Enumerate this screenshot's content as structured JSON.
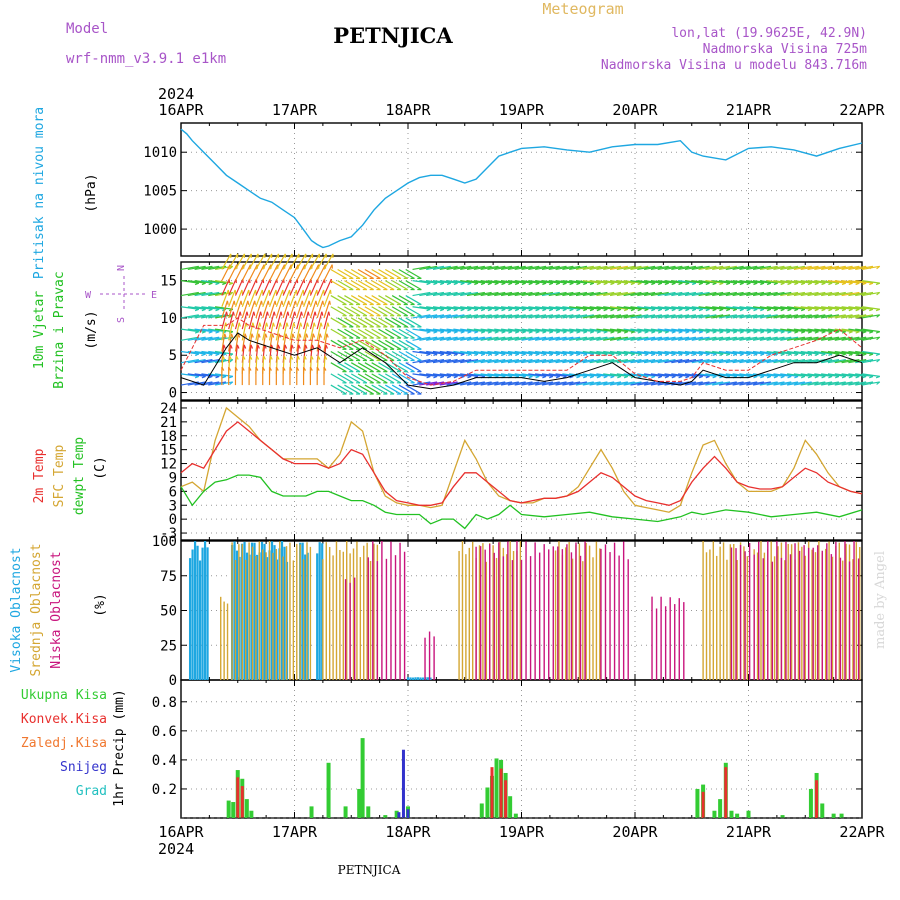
{
  "header": {
    "model_label": "Model",
    "model_name": "wrf-nmm_v3.9.1  e1km",
    "station": "PETNJICA",
    "product": "Meteogram",
    "lonlat": "lon,lat (19.9625E, 42.9N)",
    "altitude": "Nadmorska Visina 725m",
    "model_altitude": "Nadmorska Visina u modelu 843.716m"
  },
  "time_axis": {
    "year_top": "2024",
    "year_bottom": "2024",
    "labels": [
      "16APR",
      "17APR",
      "18APR",
      "19APR",
      "20APR",
      "21APR",
      "22APR"
    ],
    "footer_station": "PETNJICA"
  },
  "credit": "made by Angel",
  "colors": {
    "pressure": "#1ea7e1",
    "wind_speed": "#000000",
    "wind_gust": "#e8302e",
    "t2m": "#e8302e",
    "sfc": "#d4a632",
    "dewpt": "#22c122",
    "cloud_high": "#1ea7e1",
    "cloud_mid": "#d4a632",
    "cloud_low": "#c8147d",
    "precip_total": "#33cc33",
    "precip_conv": "#e8302e",
    "precip_frz": "#f07830",
    "snow": "#3333cc",
    "hail": "#22c0c0"
  },
  "panels": {
    "pressure": {
      "ylabel_name": "Pritisak na nivou mora",
      "ylabel_unit": "(hPa)",
      "ticks": [
        "1000",
        "1005",
        "1010"
      ]
    },
    "wind": {
      "ylabel_name1": "10m Vjetar",
      "ylabel_name2": "Brzina i Pravac",
      "ylabel_unit": "(m/s)",
      "compass_n": "N",
      "compass_e": "E",
      "compass_w": "W",
      "compass_s": "S",
      "ticks": [
        "0",
        "5",
        "10",
        "15"
      ]
    },
    "temp": {
      "ylabel_t2m": "2m Temp",
      "ylabel_sfc": "SFC Temp",
      "ylabel_dew": "dewpt Temp",
      "ylabel_unit": "(C)",
      "ticks": [
        "-3",
        "0",
        "3",
        "6",
        "9",
        "12",
        "15",
        "18",
        "21",
        "24"
      ]
    },
    "cloud": {
      "ylabel_high": "Visoka Oblacnost",
      "ylabel_mid": "Srednja Oblacnost",
      "ylabel_low": "Niska Oblacnost",
      "ylabel_unit": "(%)",
      "ticks": [
        "0",
        "25",
        "50",
        "75",
        "100"
      ]
    },
    "precip": {
      "ylabel": "1hr Precip (mm)",
      "legend": [
        "Ukupna Kisa",
        "Konvek.Kisa",
        "Zaledj.Kisa",
        "Snijeg",
        "Grad"
      ],
      "ticks": [
        "0.2",
        "0.4",
        "0.6",
        "0.8"
      ]
    }
  },
  "chart_data": [
    {
      "type": "line",
      "title": "",
      "ylabel": "Pritisak na nivou mora (hPa)",
      "ylim": [
        996.5,
        1013.8
      ],
      "x_unit": "days since 16APR 00UTC",
      "series": [
        {
          "name": "Pritisak na nivou mora",
          "x": [
            0,
            0.05,
            0.1,
            0.2,
            0.3,
            0.4,
            0.5,
            0.6,
            0.7,
            0.8,
            0.9,
            1.0,
            1.05,
            1.1,
            1.15,
            1.2,
            1.25,
            1.3,
            1.4,
            1.5,
            1.6,
            1.7,
            1.8,
            1.9,
            2.0,
            2.1,
            2.2,
            2.3,
            2.4,
            2.5,
            2.6,
            2.7,
            2.8,
            2.9,
            3.0,
            3.2,
            3.4,
            3.6,
            3.8,
            4.0,
            4.2,
            4.4,
            4.5,
            4.6,
            4.8,
            5.0,
            5.2,
            5.4,
            5.6,
            5.8,
            6.0
          ],
          "y": [
            1013,
            1012.4,
            1011.5,
            1010,
            1008.5,
            1007,
            1006,
            1005,
            1004,
            1003.5,
            1002.5,
            1001.5,
            1000.5,
            999.5,
            998.5,
            998,
            997.6,
            997.8,
            998.5,
            999,
            1000.5,
            1002.5,
            1004,
            1005,
            1006,
            1006.7,
            1007,
            1007,
            1006.5,
            1006,
            1006.5,
            1008,
            1009.5,
            1010,
            1010.5,
            1010.7,
            1010.3,
            1010,
            1010.7,
            1011,
            1011,
            1011.5,
            1010,
            1009.5,
            1009,
            1010.5,
            1010.7,
            1010.3,
            1009.5,
            1010.5,
            1011.2
          ]
        }
      ]
    },
    {
      "type": "line",
      "title": "",
      "ylabel": "10m Vjetar Brzina i Pravac (m/s)",
      "ylim": [
        -1,
        17.5
      ],
      "x_unit": "days since 16APR 00UTC",
      "series": [
        {
          "name": "wind speed",
          "x": [
            0,
            0.2,
            0.4,
            0.5,
            0.6,
            0.8,
            1.0,
            1.2,
            1.4,
            1.6,
            1.8,
            2.0,
            2.2,
            2.4,
            2.6,
            2.8,
            3.0,
            3.2,
            3.4,
            3.6,
            3.8,
            4.0,
            4.2,
            4.4,
            4.5,
            4.6,
            4.8,
            5.0,
            5.2,
            5.4,
            5.6,
            5.8,
            6.0
          ],
          "y": [
            2,
            1,
            6,
            8,
            7,
            6,
            5,
            6,
            4,
            6,
            4,
            1,
            0.5,
            1,
            2,
            2,
            2,
            1.5,
            2,
            3,
            4,
            2,
            1.5,
            1,
            1.5,
            3,
            2,
            2,
            3,
            4,
            4,
            5,
            4
          ]
        },
        {
          "name": "wind gust",
          "x": [
            0,
            0.2,
            0.4,
            0.5,
            0.6,
            0.8,
            1.0,
            1.2,
            1.4,
            1.6,
            1.8,
            2.0,
            2.2,
            2.4,
            2.6,
            2.8,
            3.0,
            3.2,
            3.4,
            3.6,
            3.8,
            4.0,
            4.2,
            4.4,
            4.5,
            4.6,
            4.8,
            5.0,
            5.2,
            5.4,
            5.6,
            5.8,
            6.0
          ],
          "y": [
            3,
            9,
            9,
            10,
            9,
            8,
            7,
            7,
            6,
            7,
            5,
            2,
            1,
            1.5,
            3,
            3,
            3,
            3,
            3,
            5,
            5,
            2.5,
            1.5,
            1.5,
            2,
            4,
            3,
            3,
            5,
            6,
            7,
            8.5,
            6
          ]
        }
      ]
    },
    {
      "type": "line",
      "title": "",
      "ylabel": "Temp (C)",
      "ylim": [
        -4.5,
        25.5
      ],
      "x_unit": "days since 16APR 00UTC",
      "series": [
        {
          "name": "2m Temp",
          "x": [
            0,
            0.1,
            0.2,
            0.3,
            0.4,
            0.5,
            0.6,
            0.7,
            0.8,
            0.9,
            1.0,
            1.1,
            1.2,
            1.3,
            1.4,
            1.5,
            1.6,
            1.7,
            1.8,
            1.9,
            2.0,
            2.1,
            2.2,
            2.3,
            2.4,
            2.5,
            2.6,
            2.7,
            2.8,
            2.9,
            3.0,
            3.1,
            3.2,
            3.3,
            3.4,
            3.5,
            3.6,
            3.7,
            3.8,
            3.9,
            4.0,
            4.1,
            4.2,
            4.3,
            4.4,
            4.5,
            4.6,
            4.7,
            4.8,
            4.9,
            5.0,
            5.1,
            5.2,
            5.3,
            5.4,
            5.5,
            5.6,
            5.7,
            5.8,
            5.9,
            6.0
          ],
          "y": [
            10,
            12,
            11,
            15,
            19,
            21,
            19,
            17,
            15,
            13,
            12,
            12,
            12,
            11,
            12,
            15,
            14,
            10,
            6,
            4,
            3.5,
            3,
            3,
            3.5,
            7,
            10,
            10,
            8,
            6,
            4,
            3.5,
            4,
            4.5,
            4.5,
            5,
            6,
            8,
            10,
            9,
            7,
            5,
            4,
            3.5,
            3,
            4,
            8,
            11,
            13.5,
            11,
            8,
            7,
            6.5,
            6.5,
            7,
            9,
            11,
            10,
            8,
            7,
            6,
            5.5
          ]
        },
        {
          "name": "SFC Temp",
          "x": [
            0,
            0.1,
            0.2,
            0.3,
            0.4,
            0.5,
            0.6,
            0.7,
            0.8,
            0.9,
            1.0,
            1.1,
            1.2,
            1.3,
            1.4,
            1.5,
            1.6,
            1.7,
            1.8,
            1.9,
            2.0,
            2.1,
            2.2,
            2.3,
            2.4,
            2.5,
            2.6,
            2.7,
            2.8,
            2.9,
            3.0,
            3.1,
            3.2,
            3.3,
            3.4,
            3.5,
            3.6,
            3.7,
            3.8,
            3.9,
            4.0,
            4.1,
            4.2,
            4.3,
            4.4,
            4.5,
            4.6,
            4.7,
            4.8,
            4.9,
            5.0,
            5.1,
            5.2,
            5.3,
            5.4,
            5.5,
            5.6,
            5.7,
            5.8,
            5.9,
            6.0
          ],
          "y": [
            7,
            8,
            6,
            17,
            24,
            22,
            20,
            17,
            15,
            13,
            13,
            13,
            13,
            11,
            14,
            21,
            19,
            10,
            5,
            3.5,
            3,
            3,
            2.5,
            3,
            10,
            17,
            13,
            8,
            5,
            4,
            3.5,
            3.5,
            4.5,
            4.5,
            5,
            7,
            11,
            15,
            11,
            6,
            3,
            2.5,
            2,
            1.5,
            3,
            10,
            16,
            17,
            12,
            8,
            6,
            6,
            6,
            7,
            11,
            17,
            14,
            10,
            7,
            6,
            5.5
          ]
        },
        {
          "name": "dewpt Temp",
          "x": [
            0,
            0.1,
            0.2,
            0.3,
            0.4,
            0.5,
            0.6,
            0.7,
            0.8,
            0.9,
            1.0,
            1.1,
            1.2,
            1.3,
            1.4,
            1.5,
            1.6,
            1.7,
            1.8,
            1.9,
            2.0,
            2.1,
            2.2,
            2.3,
            2.4,
            2.5,
            2.6,
            2.7,
            2.8,
            2.9,
            3.0,
            3.2,
            3.4,
            3.6,
            3.8,
            4.0,
            4.2,
            4.4,
            4.5,
            4.6,
            4.8,
            5.0,
            5.2,
            5.4,
            5.6,
            5.8,
            6.0
          ],
          "y": [
            7,
            3,
            6,
            8,
            8.5,
            9.5,
            9.5,
            9,
            6,
            5,
            5,
            5,
            6,
            6,
            5,
            4,
            4,
            3,
            1.5,
            1,
            1,
            1,
            -1,
            0,
            0,
            -2,
            1,
            0,
            1,
            3,
            1,
            0.5,
            1,
            1.5,
            0.5,
            0,
            -0.5,
            0.5,
            1.5,
            1,
            2,
            1.5,
            0.5,
            1,
            1.5,
            0.5,
            2
          ]
        }
      ]
    },
    {
      "type": "bar",
      "title": "",
      "ylabel": "Oblacnost (%)",
      "ylim": [
        0,
        100
      ],
      "x_unit": "days since 16APR 00UTC",
      "series": [
        {
          "name": "Visoka Oblacnost",
          "periods": [
            [
              0.08,
              0.25,
              100
            ],
            [
              0.45,
              0.95,
              100
            ],
            [
              1.05,
              1.12,
              100
            ],
            [
              1.2,
              1.25,
              100
            ],
            [
              2.0,
              2.2,
              2
            ]
          ]
        },
        {
          "name": "Srednja Oblacnost",
          "periods": [
            [
              0.35,
              0.42,
              60
            ],
            [
              0.45,
              1.15,
              100
            ],
            [
              1.25,
              1.75,
              100
            ],
            [
              2.45,
              3.0,
              100
            ],
            [
              3.3,
              3.7,
              100
            ],
            [
              4.6,
              5.0,
              100
            ],
            [
              5.05,
              6.0,
              100
            ]
          ]
        },
        {
          "name": "Niska Oblacnost",
          "periods": [
            [
              1.45,
              1.55,
              75
            ],
            [
              1.65,
              2.0,
              100
            ],
            [
              2.15,
              2.25,
              35
            ],
            [
              2.6,
              3.6,
              100
            ],
            [
              3.7,
              3.95,
              100
            ],
            [
              4.15,
              4.45,
              60
            ],
            [
              4.85,
              6.0,
              100
            ]
          ]
        }
      ]
    },
    {
      "type": "bar",
      "title": "",
      "ylabel": "1hr Precip (mm)",
      "ylim": [
        0,
        0.95
      ],
      "x_unit": "days since 16APR 00UTC",
      "series": [
        {
          "name": "Ukupna Kisa",
          "x": [
            0.42,
            0.46,
            0.5,
            0.54,
            0.58,
            0.62,
            1.15,
            1.3,
            1.45,
            1.57,
            1.6,
            1.65,
            1.8,
            1.9,
            2.0,
            2.65,
            2.7,
            2.74,
            2.78,
            2.82,
            2.86,
            2.9,
            2.95,
            4.55,
            4.6,
            4.7,
            4.75,
            4.8,
            4.85,
            4.9,
            5.0,
            5.3,
            5.55,
            5.6,
            5.65,
            5.75,
            5.82
          ],
          "y": [
            0.12,
            0.11,
            0.33,
            0.27,
            0.13,
            0.05,
            0.08,
            0.38,
            0.08,
            0.2,
            0.55,
            0.08,
            0.02,
            0.05,
            0.08,
            0.1,
            0.21,
            0.29,
            0.41,
            0.4,
            0.31,
            0.15,
            0.03,
            0.2,
            0.23,
            0.05,
            0.13,
            0.38,
            0.05,
            0.03,
            0.05,
            0.02,
            0.2,
            0.31,
            0.1,
            0.03,
            0.03
          ]
        },
        {
          "name": "Konvek.Kisa",
          "x": [
            0.5,
            0.54,
            2.74,
            2.82,
            2.86,
            4.6,
            4.8,
            5.6
          ],
          "y": [
            0.28,
            0.22,
            0.35,
            0.34,
            0.26,
            0.18,
            0.35,
            0.26
          ]
        },
        {
          "name": "Snijeg",
          "x": [
            1.92,
            1.96,
            2.0
          ],
          "y": [
            0.04,
            0.47,
            0.06
          ]
        }
      ]
    }
  ]
}
